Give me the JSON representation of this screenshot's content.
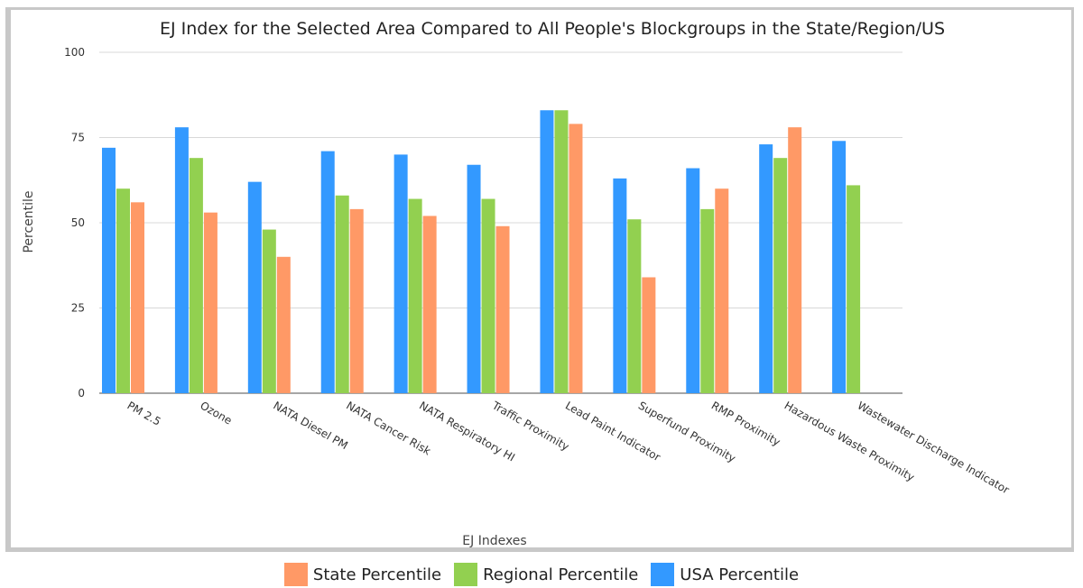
{
  "chart_data": {
    "type": "bar",
    "title": "EJ Index for the Selected Area Compared to All People's Blockgroups in the State/Region/US",
    "xlabel": "EJ Indexes",
    "ylabel": "Percentile",
    "ylim": [
      0,
      100
    ],
    "yticks": [
      0,
      25,
      50,
      75,
      100
    ],
    "grid": true,
    "legend_position": "bottom",
    "categories": [
      "PM 2.5",
      "Ozone",
      "NATA Diesel PM",
      "NATA Cancer Risk",
      "NATA Respiratory HI",
      "Traffic Proximity",
      "Lead Paint Indicator",
      "Superfund Proximity",
      "RMP Proximity",
      "Hazardous Waste Proximity",
      "Wastewater Discharge Indicator"
    ],
    "series": [
      {
        "name": "USA Percentile",
        "color": "#3399ff",
        "values": [
          72,
          78,
          62,
          71,
          70,
          67,
          83,
          63,
          66,
          73,
          74
        ]
      },
      {
        "name": "Regional Percentile",
        "color": "#92d050",
        "values": [
          60,
          69,
          48,
          58,
          57,
          57,
          83,
          51,
          54,
          69,
          61
        ]
      },
      {
        "name": "State Percentile",
        "color": "#ff9966",
        "values": [
          56,
          53,
          40,
          54,
          52,
          49,
          79,
          34,
          60,
          78,
          null
        ]
      }
    ],
    "legend_order": [
      "State Percentile",
      "Regional Percentile",
      "USA Percentile"
    ]
  }
}
